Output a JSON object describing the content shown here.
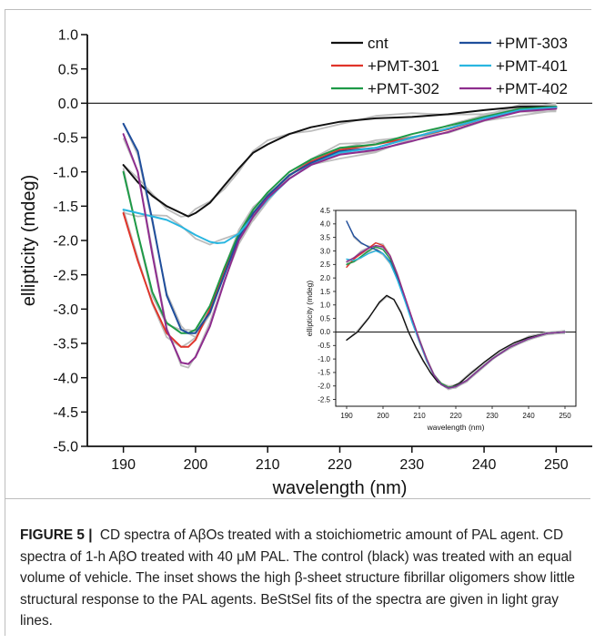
{
  "caption": {
    "label": "FIGURE 5",
    "separator": "|",
    "text": "CD spectra of AβOs treated with a stoichiometric amount of PAL agent. CD spectra of 1-h AβO treated with 40 μM PAL. The control (black) was treated with an equal volume of vehicle. The inset shows the high β-sheet structure fibrillar oligomers show little structural response to the PAL agents. BeStSel fits of the spectra are given in light gray lines."
  },
  "chart_data": [
    {
      "id": "main",
      "type": "line",
      "xlabel": "wavelength (nm)",
      "ylabel": "ellipticity (mdeg)",
      "xlim": [
        185,
        255
      ],
      "ylim": [
        -5.0,
        1.0
      ],
      "xticks": [
        190,
        200,
        210,
        220,
        230,
        240,
        250
      ],
      "xtick_labels": [
        "190",
        "200",
        "210",
        "220",
        "230",
        "240",
        "250"
      ],
      "yticks": [
        1.0,
        0.5,
        0.0,
        -0.5,
        -1.0,
        -1.5,
        -2.0,
        -2.5,
        -3.0,
        -3.5,
        -4.0,
        -4.5,
        -5.0
      ],
      "ytick_labels": [
        "1.0",
        "0.5",
        "0.0",
        "-0.5",
        "-1.0",
        "-1.5",
        "-2.0",
        "-2.5",
        "-3.0",
        "-3.5",
        "-4.0",
        "-4.5",
        "-5.0"
      ],
      "zero_line": true,
      "legend_position": "top-right",
      "series": [
        {
          "name": "cnt",
          "color": "#111111",
          "x": [
            190,
            192,
            194,
            196,
            198,
            199,
            200,
            202,
            204,
            206,
            208,
            210,
            213,
            216,
            220,
            225,
            230,
            235,
            240,
            245,
            250
          ],
          "y": [
            -0.9,
            -1.15,
            -1.35,
            -1.5,
            -1.6,
            -1.65,
            -1.6,
            -1.45,
            -1.2,
            -0.95,
            -0.72,
            -0.6,
            -0.45,
            -0.35,
            -0.27,
            -0.22,
            -0.2,
            -0.16,
            -0.1,
            -0.05,
            -0.05
          ]
        },
        {
          "name": "+PMT-301",
          "color": "#e0342a",
          "x": [
            190,
            192,
            194,
            196,
            198,
            199,
            200,
            202,
            204,
            206,
            208,
            210,
            213,
            216,
            220,
            225,
            230,
            235,
            240,
            245,
            250
          ],
          "y": [
            -1.6,
            -2.3,
            -2.9,
            -3.35,
            -3.55,
            -3.55,
            -3.45,
            -3.0,
            -2.45,
            -1.95,
            -1.6,
            -1.35,
            -1.05,
            -0.85,
            -0.68,
            -0.6,
            -0.5,
            -0.38,
            -0.22,
            -0.1,
            -0.06
          ]
        },
        {
          "name": "+PMT-302",
          "color": "#1e9a47",
          "x": [
            190,
            192,
            194,
            196,
            198,
            199,
            200,
            202,
            204,
            206,
            208,
            210,
            213,
            216,
            220,
            225,
            230,
            235,
            240,
            245,
            250
          ],
          "y": [
            -1.0,
            -1.9,
            -2.75,
            -3.2,
            -3.35,
            -3.35,
            -3.3,
            -2.95,
            -2.4,
            -1.9,
            -1.55,
            -1.3,
            -1.0,
            -0.82,
            -0.65,
            -0.6,
            -0.45,
            -0.33,
            -0.2,
            -0.08,
            -0.05
          ]
        },
        {
          "name": "+PMT-303",
          "color": "#1f4e9c",
          "x": [
            190,
            192,
            194,
            196,
            198,
            199,
            200,
            202,
            204,
            206,
            208,
            210,
            213,
            216,
            220,
            225,
            230,
            235,
            240,
            245,
            250
          ],
          "y": [
            -0.3,
            -0.7,
            -1.7,
            -2.8,
            -3.3,
            -3.35,
            -3.35,
            -3.05,
            -2.5,
            -1.95,
            -1.6,
            -1.35,
            -1.05,
            -0.87,
            -0.7,
            -0.65,
            -0.5,
            -0.37,
            -0.22,
            -0.1,
            -0.06
          ]
        },
        {
          "name": "+PMT-401",
          "color": "#29b6e0",
          "x": [
            190,
            192,
            194,
            196,
            198,
            200,
            202,
            203,
            204,
            206,
            208,
            210,
            213,
            216,
            220,
            225,
            230,
            235,
            240,
            245,
            250
          ],
          "y": [
            -1.55,
            -1.6,
            -1.65,
            -1.7,
            -1.8,
            -1.92,
            -2.02,
            -2.04,
            -2.03,
            -1.9,
            -1.65,
            -1.4,
            -1.1,
            -0.9,
            -0.72,
            -0.65,
            -0.5,
            -0.37,
            -0.22,
            -0.1,
            -0.06
          ]
        },
        {
          "name": "+PMT-402",
          "color": "#8e2d8e",
          "x": [
            190,
            192,
            194,
            196,
            198,
            199,
            200,
            202,
            204,
            206,
            208,
            210,
            213,
            216,
            220,
            225,
            230,
            235,
            240,
            245,
            250
          ],
          "y": [
            -0.45,
            -1.0,
            -2.2,
            -3.3,
            -3.78,
            -3.8,
            -3.7,
            -3.25,
            -2.6,
            -2.0,
            -1.65,
            -1.38,
            -1.1,
            -0.9,
            -0.75,
            -0.68,
            -0.55,
            -0.42,
            -0.25,
            -0.12,
            -0.08
          ]
        }
      ]
    },
    {
      "id": "inset",
      "type": "line",
      "xlabel": "wavelength (nm)",
      "ylabel": "ellipticity (mdeg)",
      "xlim": [
        187,
        253
      ],
      "ylim": [
        -2.75,
        4.5
      ],
      "xticks": [
        190,
        200,
        210,
        220,
        230,
        240,
        250
      ],
      "xtick_labels": [
        "190",
        "200",
        "210",
        "220",
        "230",
        "240",
        "250"
      ],
      "yticks": [
        4.5,
        4.0,
        3.5,
        3.0,
        2.5,
        2.0,
        1.5,
        1.0,
        0.5,
        0.0,
        -0.5,
        -1.0,
        -1.5,
        -2.0,
        -2.5
      ],
      "ytick_labels": [
        "4.5",
        "4.0",
        "3.5",
        "3.0",
        "2.5",
        "2.0",
        "1.5",
        "1.0",
        "0.5",
        "0.0",
        "-0.5",
        "-1.0",
        "-1.5",
        "-2.0",
        "-2.5"
      ],
      "zero_line": true,
      "series": [
        {
          "name": "cnt",
          "color": "#111111",
          "x": [
            190,
            193,
            196,
            199,
            201,
            203,
            205,
            207,
            209,
            211,
            213,
            215,
            217,
            218,
            219,
            221,
            224,
            228,
            232,
            236,
            240,
            245,
            250
          ],
          "y": [
            -0.3,
            0.0,
            0.5,
            1.1,
            1.35,
            1.2,
            0.7,
            0.0,
            -0.55,
            -1.05,
            -1.5,
            -1.85,
            -2.02,
            -2.05,
            -2.02,
            -1.9,
            -1.55,
            -1.1,
            -0.7,
            -0.4,
            -0.2,
            -0.05,
            0.0
          ]
        },
        {
          "name": "+PMT-301",
          "color": "#e0342a",
          "x": [
            190,
            192,
            194,
            196,
            198,
            200,
            202,
            204,
            206,
            208,
            210,
            212,
            214,
            216,
            218,
            220,
            223,
            226,
            230,
            235,
            240,
            245,
            250
          ],
          "y": [
            2.4,
            2.7,
            2.9,
            3.1,
            3.3,
            3.2,
            2.8,
            2.1,
            1.3,
            0.5,
            -0.3,
            -1.0,
            -1.6,
            -1.9,
            -2.05,
            -2.0,
            -1.8,
            -1.45,
            -1.0,
            -0.55,
            -0.25,
            -0.05,
            0.0
          ]
        },
        {
          "name": "+PMT-302",
          "color": "#1e9a47",
          "x": [
            190,
            192,
            194,
            196,
            198,
            200,
            202,
            204,
            206,
            208,
            210,
            212,
            214,
            216,
            218,
            220,
            223,
            226,
            230,
            235,
            240,
            245,
            250
          ],
          "y": [
            2.5,
            2.6,
            2.8,
            3.0,
            3.15,
            3.05,
            2.7,
            2.0,
            1.25,
            0.45,
            -0.3,
            -1.0,
            -1.6,
            -1.9,
            -2.05,
            -2.0,
            -1.8,
            -1.45,
            -1.0,
            -0.55,
            -0.25,
            -0.05,
            0.0
          ]
        },
        {
          "name": "+PMT-303",
          "color": "#1f4e9c",
          "x": [
            190,
            192,
            194,
            196,
            198,
            200,
            202,
            204,
            206,
            208,
            210,
            212,
            214,
            216,
            218,
            220,
            223,
            226,
            230,
            235,
            240,
            245,
            250
          ],
          "y": [
            4.1,
            3.55,
            3.3,
            3.15,
            3.05,
            2.9,
            2.6,
            1.95,
            1.2,
            0.4,
            -0.35,
            -1.05,
            -1.6,
            -1.95,
            -2.08,
            -2.02,
            -1.8,
            -1.45,
            -1.0,
            -0.55,
            -0.25,
            -0.05,
            0.0
          ]
        },
        {
          "name": "+PMT-401",
          "color": "#29b6e0",
          "x": [
            190,
            192,
            194,
            196,
            198,
            200,
            202,
            204,
            206,
            208,
            210,
            212,
            214,
            216,
            218,
            220,
            223,
            226,
            230,
            235,
            240,
            245,
            250
          ],
          "y": [
            2.7,
            2.65,
            2.75,
            2.9,
            3.0,
            2.9,
            2.55,
            1.9,
            1.15,
            0.35,
            -0.35,
            -1.05,
            -1.6,
            -1.95,
            -2.08,
            -2.02,
            -1.8,
            -1.45,
            -1.0,
            -0.55,
            -0.25,
            -0.05,
            0.0
          ]
        },
        {
          "name": "+PMT-402",
          "color": "#8e2d8e",
          "x": [
            190,
            192,
            194,
            196,
            198,
            200,
            202,
            204,
            206,
            208,
            210,
            212,
            214,
            216,
            218,
            220,
            223,
            226,
            230,
            235,
            240,
            245,
            250
          ],
          "y": [
            2.6,
            2.75,
            2.95,
            3.1,
            3.2,
            3.15,
            2.8,
            2.1,
            1.3,
            0.5,
            -0.3,
            -1.0,
            -1.6,
            -1.95,
            -2.08,
            -2.02,
            -1.8,
            -1.45,
            -1.0,
            -0.55,
            -0.25,
            -0.05,
            0.0
          ]
        }
      ]
    }
  ],
  "fits_color": "#bdbdbd"
}
